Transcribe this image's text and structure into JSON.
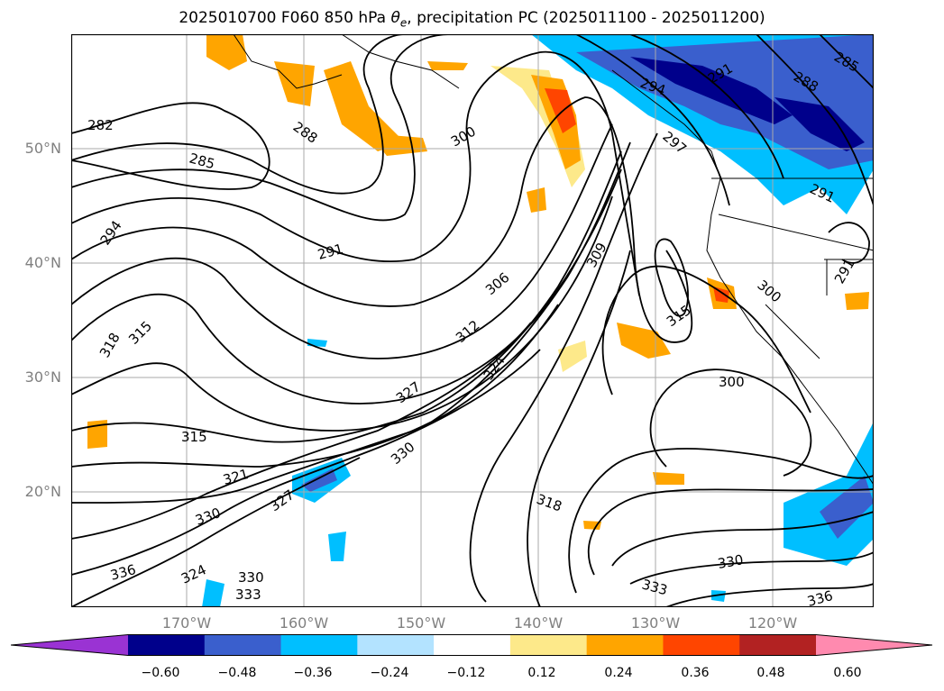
{
  "title": {
    "prefix": "2025010700 F060 850 hPa ",
    "theta": "θ",
    "theta_sub": "e",
    "suffix": ", precipitation PC (2025011100 - 2025011200)"
  },
  "lat_labels": [
    "50°N",
    "40°N",
    "30°N",
    "20°N"
  ],
  "lon_labels": [
    "170°W",
    "160°W",
    "150°W",
    "140°W",
    "130°W",
    "120°W"
  ],
  "colorbar": {
    "colors": [
      "#9a33d3",
      "#00008b",
      "#3a5fcd",
      "#00bfff",
      "#b3e3ff",
      "#ffffff",
      "#fde98a",
      "#ffa500",
      "#ff4500",
      "#b22222",
      "#ff8aaf"
    ],
    "ticks": [
      "−0.60",
      "−0.48",
      "−0.36",
      "−0.24",
      "−0.12",
      "0.12",
      "0.24",
      "0.36",
      "0.48",
      "0.60"
    ]
  },
  "contour_labels": [
    "282",
    "285",
    "288",
    "291",
    "294",
    "297",
    "300",
    "306",
    "309",
    "312",
    "315",
    "318",
    "321",
    "324",
    "327",
    "330",
    "333",
    "336"
  ]
}
